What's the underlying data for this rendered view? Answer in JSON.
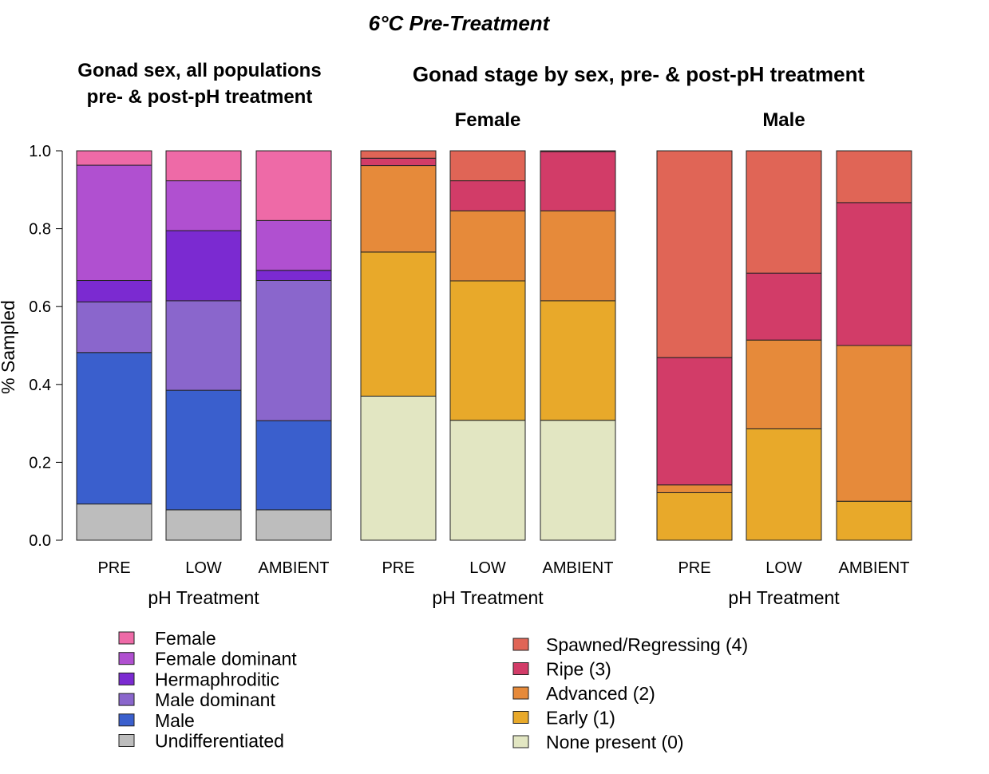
{
  "page": {
    "main_title": "6°C Pre-Treatment",
    "panel1_title_line1": "Gonad sex, all populations",
    "panel1_title_line2": "pre- & post-pH treatment",
    "panel2_title": "Gonad stage by sex, pre- & post-pH treatment"
  },
  "chart_data": [
    {
      "type": "bar",
      "stacked": true,
      "title": "Gonad sex, all populations pre- & post-pH treatment",
      "xlabel": "pH Treatment",
      "ylabel": "% Sampled",
      "ylim": [
        0,
        1
      ],
      "yticks": [
        "0.0",
        "0.2",
        "0.4",
        "0.6",
        "0.8",
        "1.0"
      ],
      "categories": [
        "PRE",
        "LOW",
        "AMBIENT"
      ],
      "series": [
        {
          "name": "Undifferentiated",
          "color": "#bdbdbd",
          "values": [
            0.093,
            0.078,
            0.078
          ]
        },
        {
          "name": "Male",
          "color": "#3a5fcd",
          "values": [
            0.389,
            0.307,
            0.229
          ]
        },
        {
          "name": "Male dominant",
          "color": "#8a66cc",
          "values": [
            0.13,
            0.23,
            0.36
          ]
        },
        {
          "name": "Hermaphroditic",
          "color": "#7b2ad1",
          "values": [
            0.055,
            0.18,
            0.026
          ]
        },
        {
          "name": "Female dominant",
          "color": "#b050d0",
          "values": [
            0.296,
            0.128,
            0.128
          ]
        },
        {
          "name": "Female",
          "color": "#ee6aa7",
          "values": [
            0.037,
            0.077,
            0.179
          ]
        }
      ]
    },
    {
      "type": "bar",
      "stacked": true,
      "title": "Female",
      "xlabel": "pH Treatment",
      "ylim": [
        0,
        1
      ],
      "categories": [
        "PRE",
        "LOW",
        "AMBIENT"
      ],
      "series": [
        {
          "name": "None present (0)",
          "color": "#e2e6c2",
          "values": [
            0.37,
            0.308,
            0.308
          ]
        },
        {
          "name": "Early (1)",
          "color": "#e8a92a",
          "values": [
            0.37,
            0.358,
            0.307
          ]
        },
        {
          "name": "Advanced (2)",
          "color": "#e68a3a",
          "values": [
            0.222,
            0.18,
            0.231
          ]
        },
        {
          "name": "Ripe (3)",
          "color": "#d23c68",
          "values": [
            0.019,
            0.077,
            0.152
          ]
        },
        {
          "name": "Spawned/Regressing (4)",
          "color": "#e06556",
          "values": [
            0.019,
            0.077,
            0.002
          ]
        }
      ]
    },
    {
      "type": "bar",
      "stacked": true,
      "title": "Male",
      "xlabel": "pH Treatment",
      "ylim": [
        0,
        1
      ],
      "categories": [
        "PRE",
        "LOW",
        "AMBIENT"
      ],
      "series": [
        {
          "name": "None present (0)",
          "color": "#e2e6c2",
          "values": [
            0.0,
            0.0,
            0.0
          ]
        },
        {
          "name": "Early (1)",
          "color": "#e8a92a",
          "values": [
            0.122,
            0.286,
            0.1
          ]
        },
        {
          "name": "Advanced (2)",
          "color": "#e68a3a",
          "values": [
            0.02,
            0.228,
            0.4
          ]
        },
        {
          "name": "Ripe (3)",
          "color": "#d23c68",
          "values": [
            0.327,
            0.172,
            0.367
          ]
        },
        {
          "name": "Spawned/Regressing (4)",
          "color": "#e06556",
          "values": [
            0.531,
            0.314,
            0.133
          ]
        }
      ]
    }
  ],
  "legends": {
    "sex": [
      {
        "label": "Female",
        "color": "#ee6aa7"
      },
      {
        "label": "Female dominant",
        "color": "#b050d0"
      },
      {
        "label": "Hermaphroditic",
        "color": "#7b2ad1"
      },
      {
        "label": "Male dominant",
        "color": "#8a66cc"
      },
      {
        "label": "Male",
        "color": "#3a5fcd"
      },
      {
        "label": "Undifferentiated",
        "color": "#bdbdbd"
      }
    ],
    "stage": [
      {
        "label": "Spawned/Regressing (4)",
        "color": "#e06556"
      },
      {
        "label": "Ripe (3)",
        "color": "#d23c68"
      },
      {
        "label": "Advanced (2)",
        "color": "#e68a3a"
      },
      {
        "label": "Early (1)",
        "color": "#e8a92a"
      },
      {
        "label": "None present (0)",
        "color": "#e2e6c2"
      }
    ]
  }
}
